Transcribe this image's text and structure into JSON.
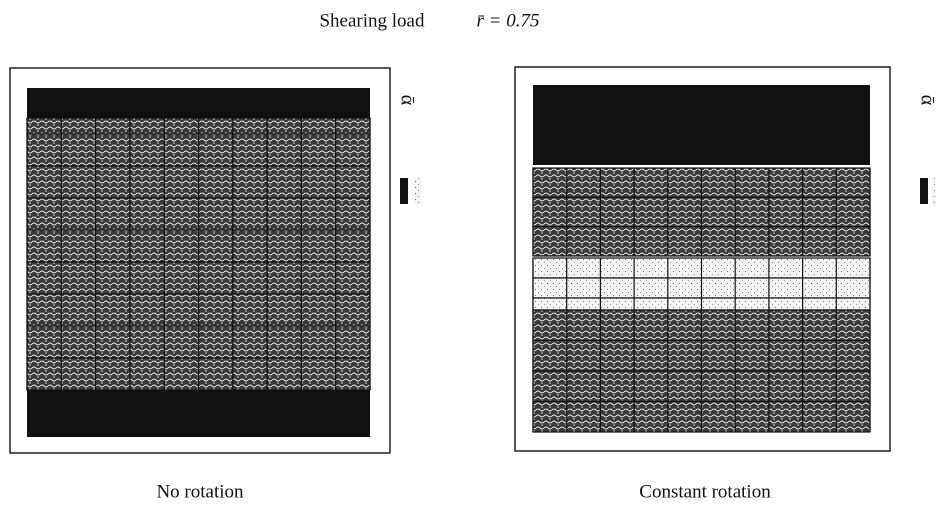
{
  "header": {
    "title": "Shearing load",
    "parameter": "r̄ = 0.75"
  },
  "panels": [
    {
      "caption": "No rotation",
      "legend_symbol": "ᾱ"
    },
    {
      "caption": "Constant rotation",
      "legend_symbol": "ᾱ"
    }
  ]
}
